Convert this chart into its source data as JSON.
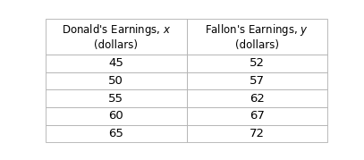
{
  "col1_header_line1": "Donald's Earnings, ",
  "col1_header_italic": "x",
  "col1_header_line2": "(dollars)",
  "col2_header_line1": "Fallon's Earnings, ",
  "col2_header_italic": "y",
  "col2_header_line2": "(dollars)",
  "col1_values": [
    "45",
    "50",
    "55",
    "60",
    "65"
  ],
  "col2_values": [
    "52",
    "57",
    "62",
    "67",
    "72"
  ],
  "background_color": "#ffffff",
  "header_bg": "#ffffff",
  "border_color": "#b0b0b0",
  "text_color": "#000000",
  "font_size_header": 8.5,
  "font_size_data": 9.5,
  "fig_width": 4.07,
  "fig_height": 1.79,
  "dpi": 100
}
